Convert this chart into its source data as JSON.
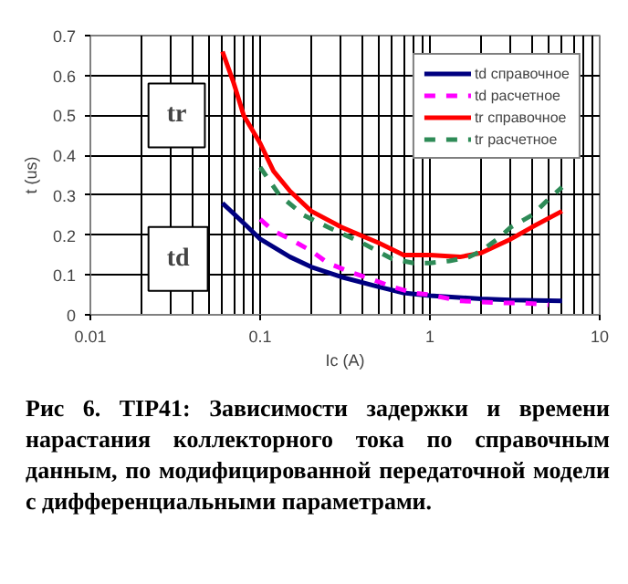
{
  "chart_data": {
    "type": "line",
    "xlabel": "Ic (A)",
    "ylabel": "t (us)",
    "log": "x",
    "xlim": [
      0.01,
      10
    ],
    "xticks": [
      0.01,
      0.1,
      1,
      10
    ],
    "ylim": [
      0,
      0.7
    ],
    "yticks": [
      0,
      0.1,
      0.2,
      0.3,
      0.4,
      0.5,
      0.6,
      0.7
    ],
    "grid": true,
    "legend": "top right",
    "marker": "none",
    "series": [
      {
        "name": "td справочное",
        "color": "#000080",
        "line_style": "solid",
        "x": [
          0.06,
          0.08,
          0.1,
          0.15,
          0.2,
          0.3,
          0.5,
          0.7,
          1,
          2,
          3,
          6
        ],
        "values": [
          0.28,
          0.23,
          0.19,
          0.145,
          0.12,
          0.095,
          0.07,
          0.055,
          0.048,
          0.04,
          0.037,
          0.035
        ]
      },
      {
        "name": "td расчетное",
        "color": "#ff00ff",
        "line_style": "dashed",
        "x": [
          0.1,
          0.12,
          0.15,
          0.2,
          0.25,
          0.35,
          0.45,
          0.6,
          0.8,
          1,
          1.5,
          2.5,
          3.5,
          5
        ],
        "values": [
          0.24,
          0.21,
          0.19,
          0.16,
          0.13,
          0.105,
          0.09,
          0.07,
          0.055,
          0.05,
          0.035,
          0.03,
          0.03,
          0.025
        ]
      },
      {
        "name": "tr справочное",
        "color": "#ff0000",
        "line_style": "solid",
        "x": [
          0.06,
          0.07,
          0.08,
          0.1,
          0.12,
          0.15,
          0.2,
          0.3,
          0.5,
          0.7,
          1,
          1.5,
          2,
          3,
          4,
          6
        ],
        "values": [
          0.66,
          0.58,
          0.5,
          0.43,
          0.36,
          0.31,
          0.26,
          0.22,
          0.18,
          0.15,
          0.15,
          0.145,
          0.155,
          0.19,
          0.22,
          0.26
        ]
      },
      {
        "name": "tr расчетное",
        "color": "#2e8b57",
        "line_style": "dashed",
        "x": [
          0.1,
          0.13,
          0.18,
          0.25,
          0.4,
          0.6,
          0.8,
          1,
          1.3,
          1.7,
          2,
          2.5,
          3,
          4,
          5,
          6
        ],
        "values": [
          0.37,
          0.3,
          0.25,
          0.22,
          0.18,
          0.14,
          0.13,
          0.13,
          0.135,
          0.145,
          0.16,
          0.19,
          0.22,
          0.25,
          0.29,
          0.32
        ]
      }
    ],
    "annotations": [
      "tr",
      "td",
      "Рис 6. TIP41: Зависимости задержки и времени нарастания коллекторного тока по справочным данным, по модифицированной передаточной модели с дифференциальными параметрами."
    ]
  }
}
